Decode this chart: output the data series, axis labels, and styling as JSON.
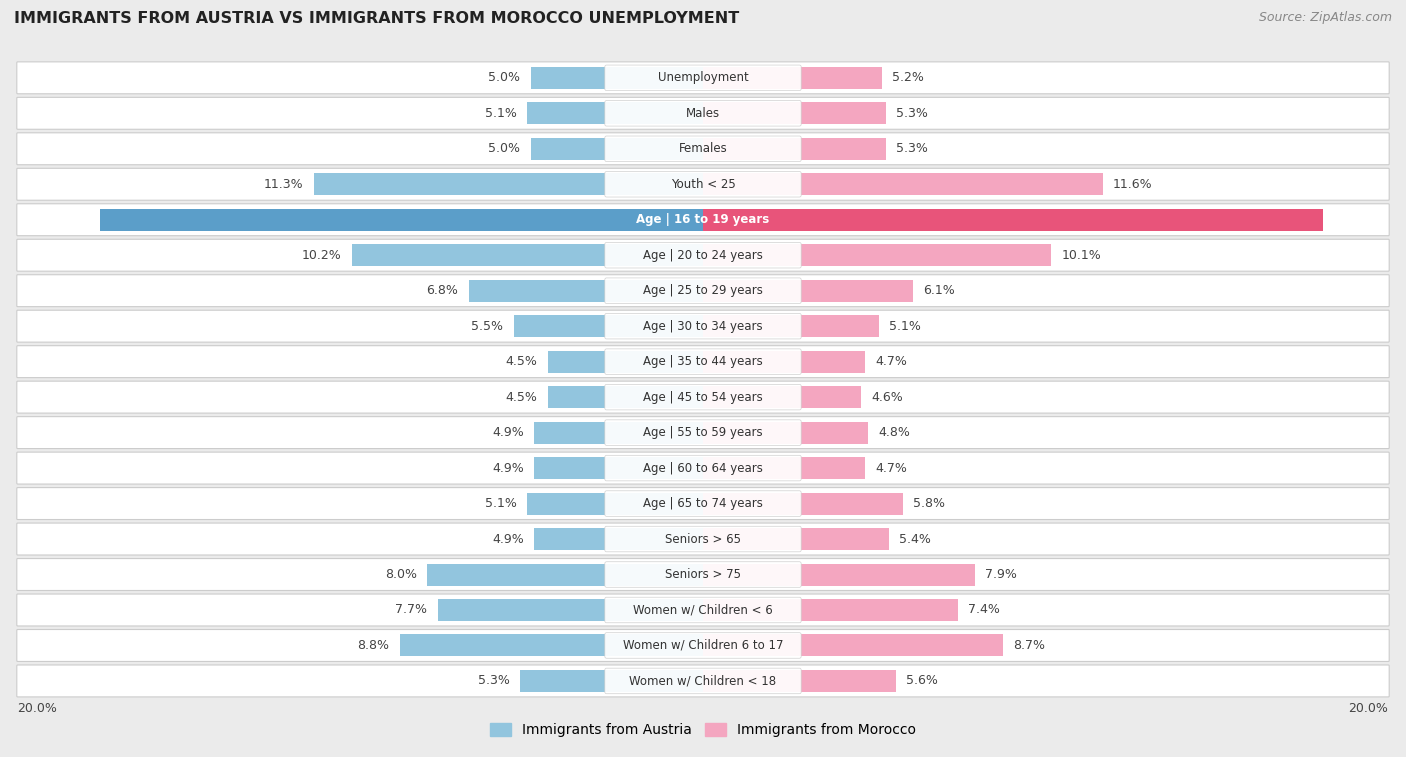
{
  "title": "IMMIGRANTS FROM AUSTRIA VS IMMIGRANTS FROM MOROCCO UNEMPLOYMENT",
  "source": "Source: ZipAtlas.com",
  "categories": [
    "Unemployment",
    "Males",
    "Females",
    "Youth < 25",
    "Age | 16 to 19 years",
    "Age | 20 to 24 years",
    "Age | 25 to 29 years",
    "Age | 30 to 34 years",
    "Age | 35 to 44 years",
    "Age | 45 to 54 years",
    "Age | 55 to 59 years",
    "Age | 60 to 64 years",
    "Age | 65 to 74 years",
    "Seniors > 65",
    "Seniors > 75",
    "Women w/ Children < 6",
    "Women w/ Children 6 to 17",
    "Women w/ Children < 18"
  ],
  "austria_values": [
    5.0,
    5.1,
    5.0,
    11.3,
    17.5,
    10.2,
    6.8,
    5.5,
    4.5,
    4.5,
    4.9,
    4.9,
    5.1,
    4.9,
    8.0,
    7.7,
    8.8,
    5.3
  ],
  "morocco_values": [
    5.2,
    5.3,
    5.3,
    11.6,
    18.0,
    10.1,
    6.1,
    5.1,
    4.7,
    4.6,
    4.8,
    4.7,
    5.8,
    5.4,
    7.9,
    7.4,
    8.7,
    5.6
  ],
  "austria_color": "#92C5DE",
  "morocco_color": "#F4A6C0",
  "highlight_austria_color": "#5B9EC9",
  "highlight_morocco_color": "#E8547A",
  "bg_outer": "#EBEBEB",
  "row_bg": "#FFFFFF",
  "row_border": "#CCCCCC",
  "xlim": 20.0,
  "label_austria": "Immigrants from Austria",
  "label_morocco": "Immigrants from Morocco",
  "highlight_idx": 4
}
